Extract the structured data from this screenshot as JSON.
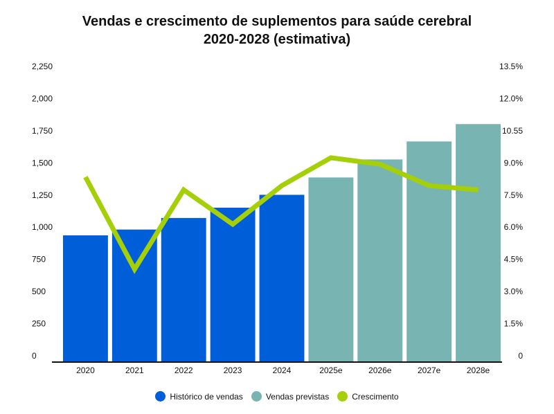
{
  "chart_data": {
    "type": "bar",
    "title": "Vendas e crescimento de suplementos para saúde cerebral",
    "subtitle": "2020-2028 (estimativa)",
    "categories": [
      "2020",
      "2021",
      "2022",
      "2023",
      "2024",
      "2025e",
      "2026e",
      "2027e",
      "2028e"
    ],
    "series": [
      {
        "name": "Histórico de vendas",
        "kind": "bar",
        "axis": "left",
        "color": "#005ed9",
        "values": [
          980,
          1025,
          1115,
          1195,
          1295,
          null,
          null,
          null,
          null
        ]
      },
      {
        "name": "Vendas previstas",
        "kind": "bar",
        "axis": "left",
        "color": "#78b4b1",
        "values": [
          null,
          null,
          null,
          null,
          null,
          1430,
          1570,
          1710,
          1845
        ]
      },
      {
        "name": "Crescimento",
        "kind": "line",
        "axis": "right",
        "color": "#a5cf08",
        "values": [
          8.6,
          4.3,
          8.0,
          6.4,
          8.2,
          9.5,
          9.2,
          8.2,
          8.0
        ]
      }
    ],
    "y_left": {
      "ylim": [
        0,
        2250
      ],
      "ticks": [
        "0",
        "250",
        "500",
        "750",
        "1,000",
        "1,250",
        "1,500",
        "1,750",
        "2,000",
        "2,250"
      ]
    },
    "y_right": {
      "ylim": [
        0,
        13.5
      ],
      "ticks": [
        "0",
        "1.5%",
        "3.0%",
        "4.5%",
        "6.0%",
        "7.5%",
        "9.0%",
        "10.55",
        "12.0%",
        "13.5%"
      ]
    },
    "grid": false,
    "legend_position": "bottom"
  }
}
